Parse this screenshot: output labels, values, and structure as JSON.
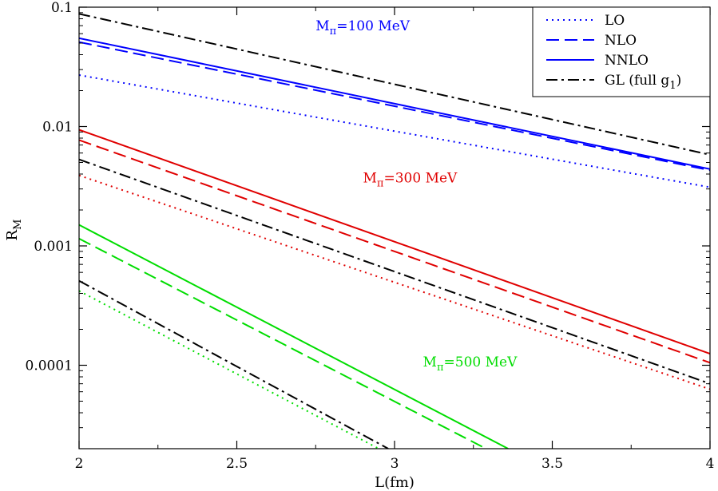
{
  "chart_data": {
    "type": "line",
    "xlabel": "L(fm)",
    "ylabel": "R",
    "ylabel_sub": "M",
    "xlim": [
      2,
      4
    ],
    "ylim": [
      2e-05,
      0.1
    ],
    "yscale": "log",
    "x_ticks": [
      2,
      2.5,
      3,
      3.5,
      4
    ],
    "x_tick_labels": [
      "2",
      "2.5",
      "3",
      "3.5",
      "4"
    ],
    "y_ticks": [
      0.1,
      0.01,
      0.001,
      0.0001
    ],
    "y_tick_labels": [
      "0.1",
      "0.01",
      "0.001",
      "0.0001"
    ],
    "grid": false,
    "legend": {
      "placement": "top-right",
      "entries": [
        {
          "label": "LO",
          "style": "dotted"
        },
        {
          "label": "NLO",
          "style": "dashed"
        },
        {
          "label": "NNLO",
          "style": "solid"
        },
        {
          "label": "GL (full g",
          "sub": "1",
          "tail": ")",
          "style": "dashdot"
        }
      ]
    },
    "annotations": [
      {
        "main": "M",
        "sub": "π",
        "rest": "=100 MeV",
        "color": "#0000ff",
        "x": 2.75,
        "y": 0.064
      },
      {
        "main": "M",
        "sub": "π",
        "rest": "=300 MeV",
        "color": "#e00000",
        "x": 2.9,
        "y": 0.0034
      },
      {
        "main": "M",
        "sub": "π",
        "rest": "=500 MeV",
        "color": "#00dd00",
        "x": 3.09,
        "y": 9.8e-05
      }
    ],
    "series": [
      {
        "group": "100 MeV",
        "style": "dotted",
        "color": "#0000ff",
        "x": [
          2,
          4
        ],
        "y": [
          0.027,
          0.0031
        ]
      },
      {
        "group": "100 MeV",
        "style": "dashed",
        "color": "#0000ff",
        "x": [
          2,
          4
        ],
        "y": [
          0.051,
          0.0043
        ]
      },
      {
        "group": "100 MeV",
        "style": "solid",
        "color": "#0000ff",
        "x": [
          2,
          4
        ],
        "y": [
          0.055,
          0.0044
        ]
      },
      {
        "group": "100 MeV",
        "style": "dashdot",
        "color": "#000000",
        "x": [
          2,
          4
        ],
        "y": [
          0.088,
          0.0058
        ]
      },
      {
        "group": "300 MeV",
        "style": "dotted",
        "color": "#e00000",
        "x": [
          2,
          4
        ],
        "y": [
          0.0039,
          6.3e-05
        ]
      },
      {
        "group": "300 MeV",
        "style": "dashed",
        "color": "#e00000",
        "x": [
          2,
          4
        ],
        "y": [
          0.0077,
          0.000105
        ]
      },
      {
        "group": "300 MeV",
        "style": "solid",
        "color": "#e00000",
        "x": [
          2,
          4
        ],
        "y": [
          0.0094,
          0.000125
        ]
      },
      {
        "group": "300 MeV",
        "style": "dashdot",
        "color": "#000000",
        "x": [
          2,
          4
        ],
        "y": [
          0.0053,
          7e-05
        ]
      },
      {
        "group": "500 MeV",
        "style": "dotted",
        "color": "#00dd00",
        "x": [
          2,
          2.95
        ],
        "y": [
          0.00042,
          2e-05
        ]
      },
      {
        "group": "500 MeV",
        "style": "dashed",
        "color": "#00dd00",
        "x": [
          2,
          3.29
        ],
        "y": [
          0.00115,
          2e-05
        ]
      },
      {
        "group": "500 MeV",
        "style": "solid",
        "color": "#00dd00",
        "x": [
          2,
          3.36
        ],
        "y": [
          0.0015,
          2e-05
        ]
      },
      {
        "group": "500 MeV",
        "style": "dashdot",
        "color": "#000000",
        "x": [
          2,
          2.98
        ],
        "y": [
          0.00051,
          2e-05
        ]
      }
    ]
  }
}
